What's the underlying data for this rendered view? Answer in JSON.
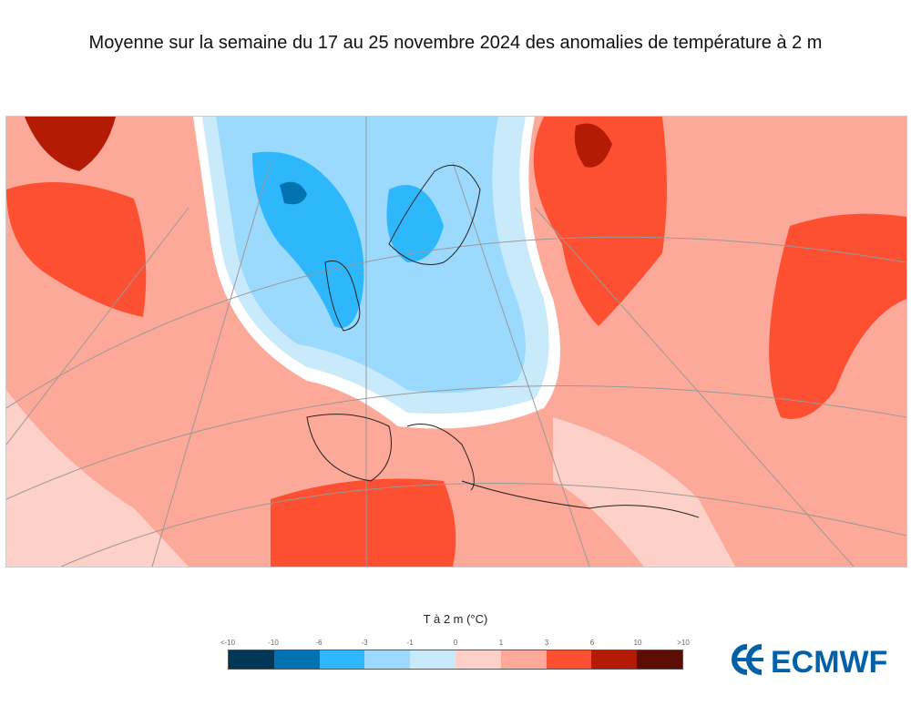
{
  "title": "Moyenne sur la semaine du 17 au 25 novembre 2024 des anomalies de température à 2 m",
  "legend": {
    "title": "T à 2 m (°C)",
    "ticks": [
      "<-10",
      "-10",
      "-6",
      "-3",
      "-1",
      "0",
      "1",
      "3",
      "6",
      "10",
      ">10"
    ],
    "colors": [
      "#003755",
      "#0073b0",
      "#2eb8fb",
      "#9cdafd",
      "#c9eafb",
      "#fdd0c8",
      "#fda999",
      "#fd5032",
      "#b41b04",
      "#5c0e05"
    ]
  },
  "logo": {
    "text": "ECMWF",
    "color": "#0061a8"
  },
  "map": {
    "land_outline_color": "#222222",
    "grid_color": "#999999"
  }
}
